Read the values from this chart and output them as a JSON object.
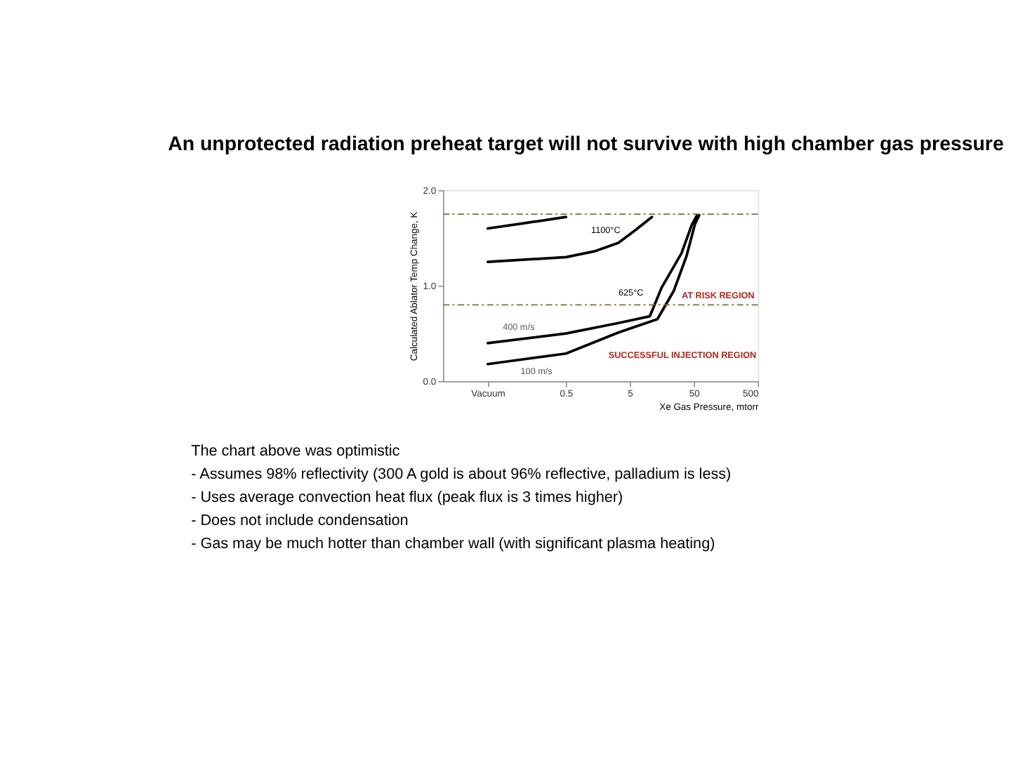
{
  "chart_data": {
    "type": "line",
    "title": "An unprotected radiation preheat target will not survive with high chamber gas pressure",
    "xlabel": "Xe Gas Pressure, mtorr",
    "ylabel": "Calculated Ablator Temp Change, K",
    "log": "x",
    "xlim": [
      0.006,
      500
    ],
    "xticks": [
      {
        "value": 0.03,
        "label": "Vacuum"
      },
      0.5,
      5,
      50,
      500
    ],
    "ylim": [
      0,
      2
    ],
    "yticks": [
      {
        "value": 0,
        "label": "0.0"
      },
      {
        "value": 1,
        "label": "1.0"
      },
      {
        "value": 2,
        "label": "2.0"
      }
    ],
    "grid": false,
    "legend": false,
    "line_style": "solid",
    "series": [
      {
        "color": "#000000",
        "x": [
          0.03,
          0.1,
          0.5
        ],
        "values": [
          1.6,
          1.65,
          1.72
        ]
      },
      {
        "color": "#000000",
        "x": [
          0.03,
          0.5,
          1.38,
          3.3,
          6,
          11
        ],
        "values": [
          1.25,
          1.3,
          1.36,
          1.45,
          1.58,
          1.72
        ]
      },
      {
        "color": "#000000",
        "x": [
          0.03,
          0.5,
          3.3,
          10.2,
          15.6,
          31.9,
          46.3,
          56.1
        ],
        "values": [
          0.4,
          0.5,
          0.61,
          0.68,
          0.98,
          1.34,
          1.64,
          1.74
        ]
      },
      {
        "color": "#000000",
        "x": [
          0.03,
          0.5,
          3.3,
          13.4,
          24.3,
          38.2,
          51.5,
          60.3
        ],
        "values": [
          0.18,
          0.29,
          0.51,
          0.65,
          0.95,
          1.31,
          1.64,
          1.74
        ]
      }
    ],
    "ref_lines": [
      {
        "axis": "y",
        "value": 1.75,
        "color": "#8b6a2a",
        "line_style": "dashed"
      },
      {
        "axis": "y",
        "value": 0.8,
        "color": "#8b6a2a",
        "line_style": "dashed"
      }
    ],
    "annotations": [
      "1100°C",
      "625°C",
      "AT RISK REGION",
      "SUCCESSFUL INJECTION REGION",
      "400 m/s",
      "100 m/s",
      "The chart above was optimistic",
      "- Assumes 98% reflectivity (300 A gold is about 96% reflective, palladium is less)",
      "- Uses average convection heat flux (peak flux is 3 times higher)",
      "- Does not include condensation",
      "- Gas may be much hotter than chamber wall (with significant plasma heating)"
    ]
  }
}
